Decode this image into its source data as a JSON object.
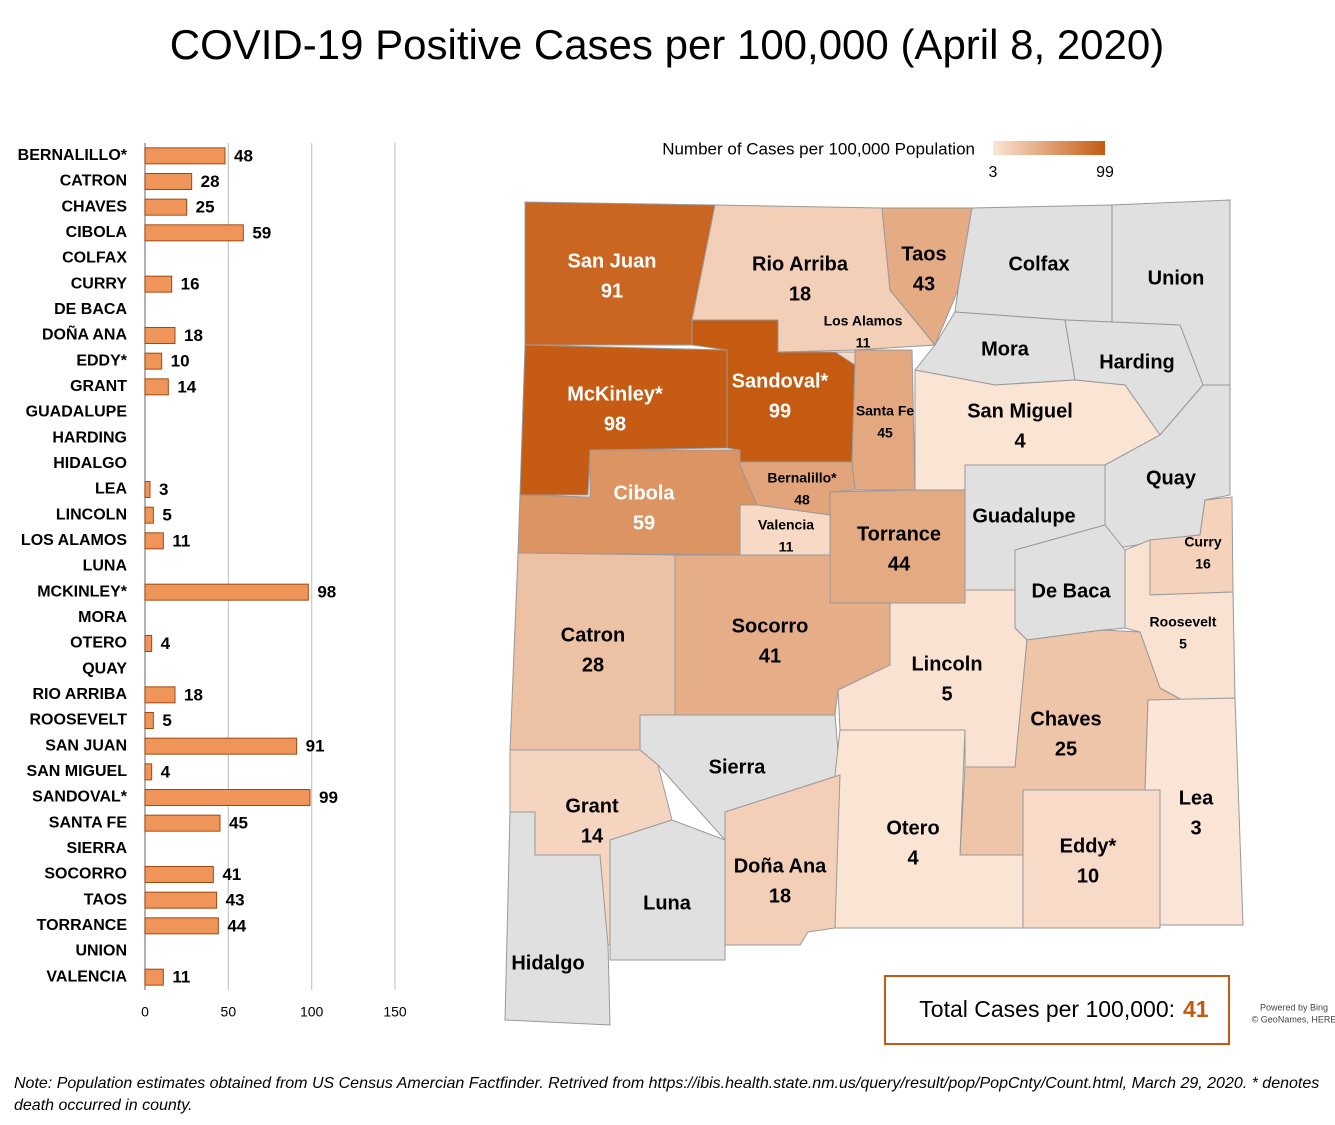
{
  "title": "COVID-19 Positive Cases per 100,000 (April 8, 2020)",
  "chart_data": [
    {
      "type": "bar",
      "categories": [
        "BERNALILLO*",
        "CATRON",
        "CHAVES",
        "CIBOLA",
        "COLFAX",
        "CURRY",
        "DE BACA",
        "DOÑA ANA",
        "EDDY*",
        "GRANT",
        "GUADALUPE",
        "HARDING",
        "HIDALGO",
        "LEA",
        "LINCOLN",
        "LOS ALAMOS",
        "LUNA",
        "MCKINLEY*",
        "MORA",
        "OTERO",
        "QUAY",
        "RIO ARRIBA",
        "ROOSEVELT",
        "SAN JUAN",
        "SAN MIGUEL",
        "SANDOVAL*",
        "SANTA FE",
        "SIERRA",
        "SOCORRO",
        "TAOS",
        "TORRANCE",
        "UNION",
        "VALENCIA"
      ],
      "values": [
        48,
        28,
        25,
        59,
        null,
        16,
        null,
        18,
        10,
        14,
        null,
        null,
        null,
        3,
        5,
        11,
        null,
        98,
        null,
        4,
        null,
        18,
        5,
        91,
        4,
        99,
        45,
        null,
        41,
        43,
        44,
        null,
        11
      ],
      "color": "#f0955a",
      "xlim": [
        0,
        150
      ],
      "xticks": [
        0,
        50,
        100,
        150
      ],
      "grid": true
    },
    {
      "type": "map",
      "legend_title": "Number of Cases per 100,000 Population",
      "color_range": [
        "#fbe5d6",
        "#c55a11"
      ],
      "colorbar_ticks": [
        3,
        99
      ],
      "no_data_color": "#e0e0e0",
      "regions": [
        {
          "name": "San Juan",
          "value": 91
        },
        {
          "name": "Rio Arriba",
          "value": 18
        },
        {
          "name": "Taos",
          "value": 43
        },
        {
          "name": "Colfax",
          "value": null
        },
        {
          "name": "Union",
          "value": null
        },
        {
          "name": "Los Alamos",
          "value": 11
        },
        {
          "name": "Mora",
          "value": null
        },
        {
          "name": "Harding",
          "value": null
        },
        {
          "name": "McKinley*",
          "value": 98
        },
        {
          "name": "Sandoval*",
          "value": 99
        },
        {
          "name": "Santa Fe",
          "value": 45
        },
        {
          "name": "San Miguel",
          "value": 4
        },
        {
          "name": "Cibola",
          "value": 59
        },
        {
          "name": "Bernalillo*",
          "value": 48
        },
        {
          "name": "Quay",
          "value": null
        },
        {
          "name": "Guadalupe",
          "value": null
        },
        {
          "name": "Valencia",
          "value": 11
        },
        {
          "name": "Torrance",
          "value": 44
        },
        {
          "name": "Curry",
          "value": 16
        },
        {
          "name": "De Baca",
          "value": null
        },
        {
          "name": "Roosevelt",
          "value": 5
        },
        {
          "name": "Catron",
          "value": 28
        },
        {
          "name": "Socorro",
          "value": 41
        },
        {
          "name": "Lincoln",
          "value": 5
        },
        {
          "name": "Chaves",
          "value": 25
        },
        {
          "name": "Sierra",
          "value": null
        },
        {
          "name": "Grant",
          "value": 14
        },
        {
          "name": "Lea",
          "value": 3
        },
        {
          "name": "Otero",
          "value": 4
        },
        {
          "name": "Eddy*",
          "value": 10
        },
        {
          "name": "Doña Ana",
          "value": 18
        },
        {
          "name": "Luna",
          "value": null
        },
        {
          "name": "Hidalgo",
          "value": null
        }
      ]
    }
  ],
  "total": {
    "label": "Total Cases per 100,000:",
    "value": 41
  },
  "credit": [
    "Powered by Bing",
    "© GeoNames, HERE"
  ],
  "note": "Note: Population estimates obtained from US Census Amercian Factfinder.  Retrived from https://ibis.health.state.nm.us/query/result/pop/PopCnty/Count.html, March 29, 2020. * denotes death occurred in county."
}
